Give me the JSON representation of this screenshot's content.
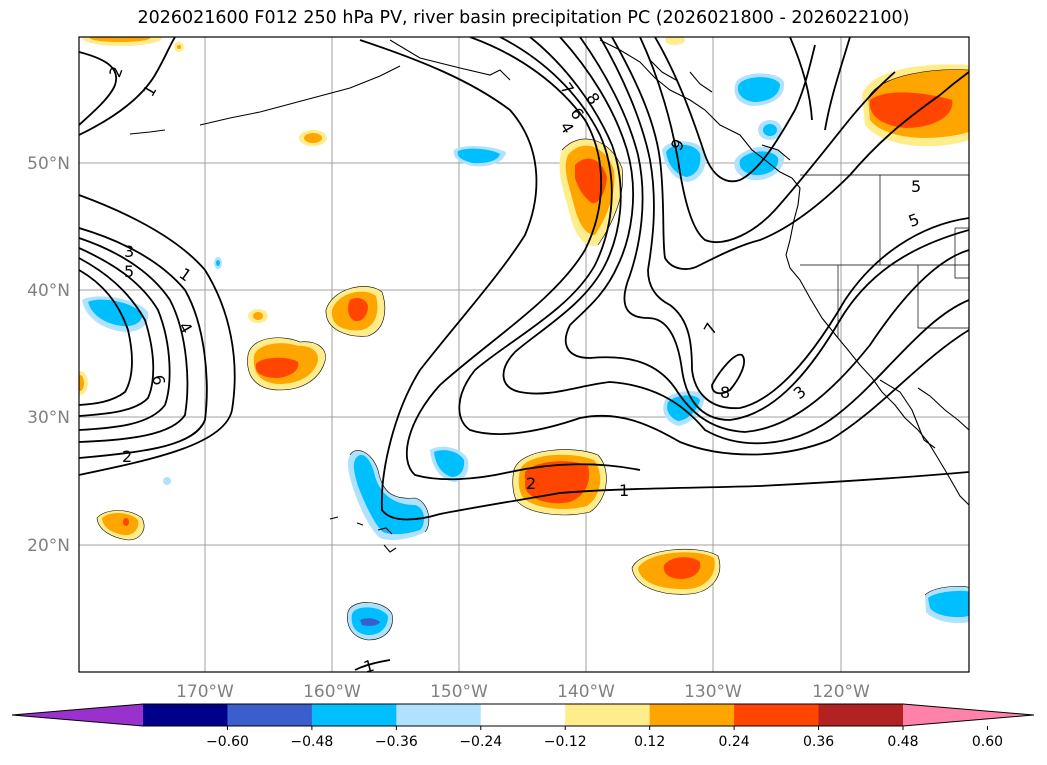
{
  "title": "2026021600 F012 250 hPa PV, river basin precipitation PC (2026021800 - 2026022100)",
  "lat_labels": [
    "50°N",
    "40°N",
    "30°N",
    "20°N"
  ],
  "lon_labels": [
    "170°W",
    "160°W",
    "150°W",
    "140°W",
    "130°W",
    "120°W"
  ],
  "colorbar": {
    "extend": "both",
    "ticks": [
      "−0.60",
      "−0.48",
      "−0.36",
      "−0.24",
      "−0.12",
      "0.12",
      "0.24",
      "0.36",
      "0.48",
      "0.60"
    ],
    "colors": [
      "#9932cc",
      "#00008b",
      "#3a5fcd",
      "#00bfff",
      "#b0e2ff",
      "#ffffff",
      "#ffec8b",
      "#ffa500",
      "#ff4500",
      "#b22222",
      "#ff82ab"
    ]
  },
  "contour_labels": [
    "2",
    "1",
    "3",
    "5",
    "1",
    "4",
    "6",
    "2",
    "4",
    "6",
    "7",
    "8",
    "9",
    "5",
    "5",
    "7",
    "8",
    "3",
    "2",
    "1",
    "1"
  ],
  "colors": {
    "contour": "#000000",
    "grid": "#a0a0a0",
    "coast": "#000000"
  }
}
